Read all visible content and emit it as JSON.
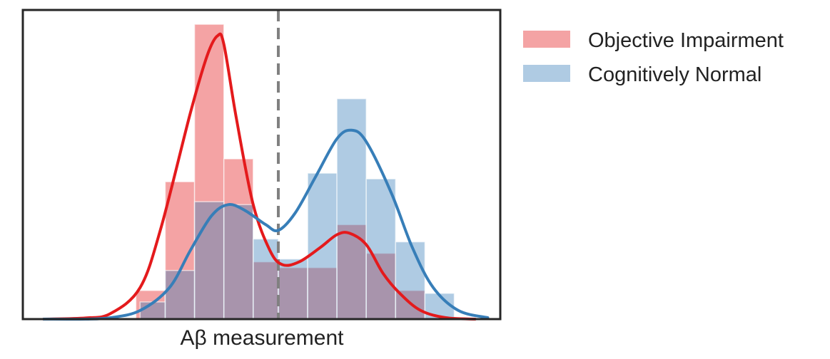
{
  "chart_data": {
    "type": "histogram",
    "xlabel": "Aβ measurement",
    "ylabel": "",
    "x_ticks_shown": false,
    "y_ticks_shown": false,
    "xlim": [
      -0.18,
      0.96
    ],
    "ylim": [
      0,
      10.8
    ],
    "grid": false,
    "threshold_line": {
      "x": 0.43,
      "style": "dashed",
      "color": "#808080"
    },
    "legend": {
      "placement": "outside-top-right"
    },
    "series": [
      {
        "name": "Objective Impairment",
        "color": "#e41a1c",
        "bins": [
          {
            "x0": 0.09,
            "x1": 0.16,
            "height": 1.0
          },
          {
            "x0": 0.16,
            "x1": 0.23,
            "height": 4.8
          },
          {
            "x0": 0.23,
            "x1": 0.3,
            "height": 10.3
          },
          {
            "x0": 0.3,
            "x1": 0.37,
            "height": 5.6
          },
          {
            "x0": 0.37,
            "x1": 0.43,
            "height": 2.0
          },
          {
            "x0": 0.43,
            "x1": 0.5,
            "height": 1.8
          },
          {
            "x0": 0.5,
            "x1": 0.57,
            "height": 1.8
          },
          {
            "x0": 0.57,
            "x1": 0.64,
            "height": 3.3
          },
          {
            "x0": 0.64,
            "x1": 0.71,
            "height": 2.3
          },
          {
            "x0": 0.71,
            "x1": 0.78,
            "height": 1.0
          }
        ],
        "kde": [
          [
            -0.13,
            0.0
          ],
          [
            -0.03,
            0.04
          ],
          [
            0.03,
            0.2
          ],
          [
            0.1,
            1.1
          ],
          [
            0.15,
            3.2
          ],
          [
            0.22,
            7.2
          ],
          [
            0.26,
            9.2
          ],
          [
            0.285,
            9.9
          ],
          [
            0.3,
            9.6
          ],
          [
            0.33,
            7.0
          ],
          [
            0.37,
            4.0
          ],
          [
            0.41,
            2.4
          ],
          [
            0.44,
            1.9
          ],
          [
            0.48,
            2.0
          ],
          [
            0.53,
            2.5
          ],
          [
            0.57,
            2.95
          ],
          [
            0.6,
            3.0
          ],
          [
            0.64,
            2.6
          ],
          [
            0.68,
            1.6
          ],
          [
            0.72,
            0.9
          ],
          [
            0.77,
            0.3
          ],
          [
            0.83,
            0.05
          ],
          [
            0.9,
            0.0
          ]
        ]
      },
      {
        "name": "Cognitively Normal",
        "color": "#377eb8",
        "bins": [
          {
            "x0": 0.1,
            "x1": 0.16,
            "height": 0.6
          },
          {
            "x0": 0.16,
            "x1": 0.23,
            "height": 1.7
          },
          {
            "x0": 0.23,
            "x1": 0.3,
            "height": 4.1
          },
          {
            "x0": 0.3,
            "x1": 0.37,
            "height": 4.0
          },
          {
            "x0": 0.37,
            "x1": 0.43,
            "height": 2.8
          },
          {
            "x0": 0.43,
            "x1": 0.5,
            "height": 2.1
          },
          {
            "x0": 0.5,
            "x1": 0.57,
            "height": 5.1
          },
          {
            "x0": 0.57,
            "x1": 0.64,
            "height": 7.7
          },
          {
            "x0": 0.64,
            "x1": 0.71,
            "height": 4.9
          },
          {
            "x0": 0.71,
            "x1": 0.78,
            "height": 2.7
          },
          {
            "x0": 0.78,
            "x1": 0.85,
            "height": 0.9
          }
        ],
        "kde": [
          [
            -0.13,
            0.0
          ],
          [
            -0.03,
            0.0
          ],
          [
            0.03,
            0.05
          ],
          [
            0.1,
            0.3
          ],
          [
            0.17,
            1.1
          ],
          [
            0.22,
            2.4
          ],
          [
            0.27,
            3.6
          ],
          [
            0.31,
            4.0
          ],
          [
            0.35,
            3.8
          ],
          [
            0.4,
            3.3
          ],
          [
            0.43,
            3.1
          ],
          [
            0.47,
            3.7
          ],
          [
            0.52,
            5.0
          ],
          [
            0.57,
            6.3
          ],
          [
            0.605,
            6.6
          ],
          [
            0.64,
            6.2
          ],
          [
            0.7,
            4.4
          ],
          [
            0.75,
            2.5
          ],
          [
            0.8,
            1.1
          ],
          [
            0.86,
            0.3
          ],
          [
            0.93,
            0.05
          ]
        ]
      }
    ]
  }
}
